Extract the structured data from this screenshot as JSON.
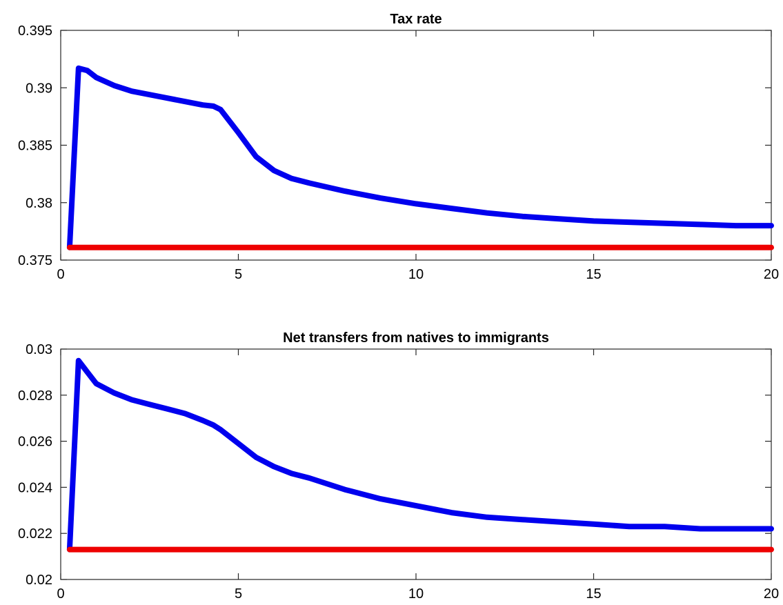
{
  "chart_data": [
    {
      "type": "line",
      "title": "Tax rate",
      "xlabel": "",
      "ylabel": "",
      "xlim": [
        0,
        20
      ],
      "ylim": [
        0.375,
        0.395
      ],
      "xticks": [
        0,
        5,
        10,
        15,
        20
      ],
      "yticks": [
        0.375,
        0.38,
        0.385,
        0.39,
        0.395
      ],
      "xtick_labels": [
        "0",
        "5",
        "10",
        "15",
        "20"
      ],
      "ytick_labels": [
        "0.375",
        "0.38",
        "0.385",
        "0.39",
        "0.395"
      ],
      "grid": false,
      "series": [
        {
          "color": "#0000ee",
          "x": [
            0.25,
            0.5,
            0.75,
            1,
            1.5,
            2,
            2.5,
            3,
            3.5,
            4,
            4.3,
            4.5,
            5,
            5.5,
            6,
            6.5,
            7,
            8,
            9,
            10,
            11,
            12,
            13,
            14,
            15,
            16,
            17,
            18,
            19,
            20
          ],
          "values": [
            0.3761,
            0.3917,
            0.3915,
            0.3909,
            0.3902,
            0.3897,
            0.3894,
            0.3891,
            0.3888,
            0.3885,
            0.3884,
            0.3881,
            0.3861,
            0.384,
            0.3828,
            0.3821,
            0.3817,
            0.381,
            0.3804,
            0.3799,
            0.3795,
            0.3791,
            0.3788,
            0.3786,
            0.3784,
            0.3783,
            0.3782,
            0.3781,
            0.378,
            0.378
          ]
        },
        {
          "color": "#ee0000",
          "x": [
            0.25,
            20
          ],
          "values": [
            0.3761,
            0.3761
          ]
        }
      ]
    },
    {
      "type": "line",
      "title": "Net transfers from natives to immigrants",
      "xlabel": "",
      "ylabel": "",
      "xlim": [
        0,
        20
      ],
      "ylim": [
        0.02,
        0.03
      ],
      "xticks": [
        0,
        5,
        10,
        15,
        20
      ],
      "yticks": [
        0.02,
        0.022,
        0.024,
        0.026,
        0.028,
        0.03
      ],
      "xtick_labels": [
        "0",
        "5",
        "10",
        "15",
        "20"
      ],
      "ytick_labels": [
        "0.02",
        "0.022",
        "0.024",
        "0.026",
        "0.028",
        "0.03"
      ],
      "grid": false,
      "series": [
        {
          "color": "#0000ee",
          "x": [
            0.25,
            0.5,
            0.75,
            1,
            1.5,
            2,
            2.5,
            3,
            3.5,
            4,
            4.3,
            4.5,
            5,
            5.5,
            6,
            6.5,
            7,
            8,
            9,
            10,
            11,
            12,
            13,
            14,
            15,
            16,
            17,
            18,
            19,
            20
          ],
          "values": [
            0.0213,
            0.0295,
            0.029,
            0.0285,
            0.0281,
            0.0278,
            0.0276,
            0.0274,
            0.0272,
            0.0269,
            0.0267,
            0.0265,
            0.0259,
            0.0253,
            0.0249,
            0.0246,
            0.0244,
            0.0239,
            0.0235,
            0.0232,
            0.0229,
            0.0227,
            0.0226,
            0.0225,
            0.0224,
            0.0223,
            0.0223,
            0.0222,
            0.0222,
            0.0222
          ]
        },
        {
          "color": "#ee0000",
          "x": [
            0.25,
            20
          ],
          "values": [
            0.0213,
            0.0213
          ]
        }
      ]
    }
  ]
}
